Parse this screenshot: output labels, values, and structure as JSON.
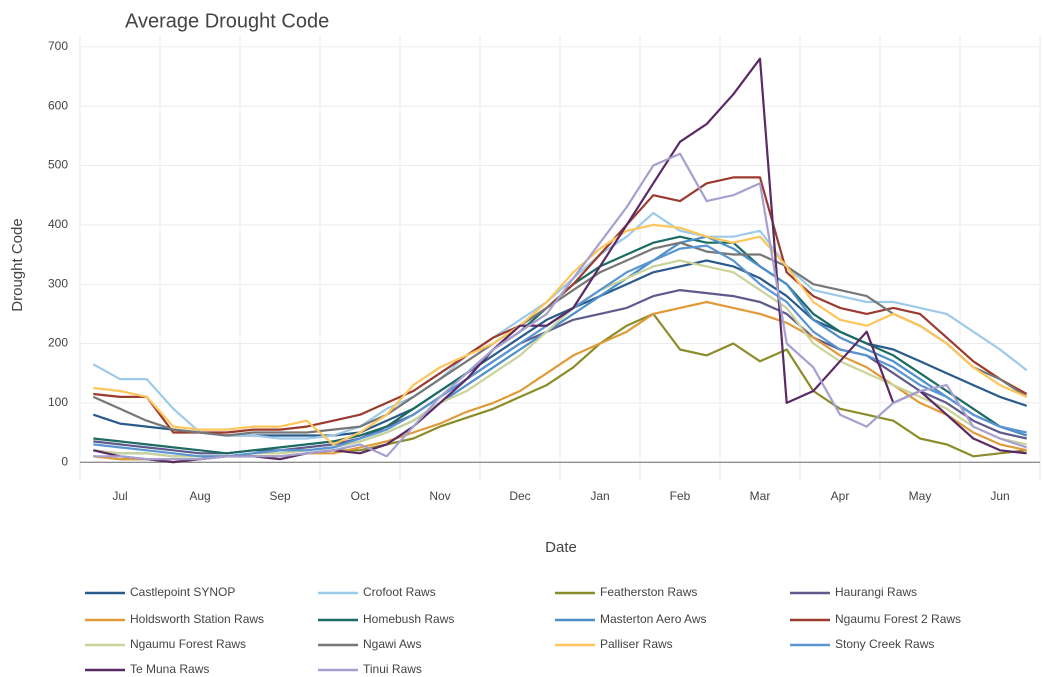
{
  "chart_data": {
    "type": "line",
    "title": "Average Drought Code",
    "x_label": "Date",
    "y_label": "Drought Code",
    "categories": [
      null,
      "Jul",
      null,
      null,
      "Aug",
      null,
      null,
      "Sep",
      null,
      null,
      "Oct",
      null,
      null,
      "Nov",
      null,
      null,
      "Dec",
      null,
      null,
      "Jan",
      null,
      null,
      "Feb",
      null,
      null,
      "Mar",
      null,
      null,
      "Apr",
      null,
      null,
      "May",
      null,
      null,
      "Jun",
      null
    ],
    "ylim": [
      -30,
      720
    ],
    "yticks": [
      0,
      100,
      200,
      300,
      400,
      500,
      600,
      700
    ],
    "grid": true,
    "series": [
      {
        "name": "Castlepoint SYNOP",
        "color": "#2a5b8c",
        "values": [
          80,
          65,
          60,
          55,
          50,
          45,
          45,
          45,
          45,
          45,
          50,
          70,
          90,
          120,
          150,
          180,
          210,
          240,
          260,
          280,
          300,
          320,
          330,
          340,
          330,
          310,
          280,
          240,
          220,
          200,
          190,
          170,
          150,
          130,
          110,
          95
        ]
      },
      {
        "name": "Crofoot Raws",
        "color": "#9ecae9",
        "values": [
          165,
          140,
          140,
          90,
          50,
          45,
          45,
          40,
          40,
          45,
          60,
          90,
          110,
          140,
          180,
          210,
          240,
          270,
          310,
          350,
          380,
          420,
          390,
          380,
          380,
          390,
          330,
          290,
          280,
          270,
          270,
          260,
          250,
          220,
          190,
          155
        ]
      },
      {
        "name": "Featherston Raws",
        "color": "#8c8c2a",
        "values": [
          10,
          5,
          5,
          0,
          5,
          10,
          10,
          10,
          15,
          20,
          20,
          30,
          40,
          60,
          75,
          90,
          110,
          130,
          160,
          200,
          230,
          250,
          190,
          180,
          200,
          170,
          190,
          120,
          90,
          80,
          70,
          40,
          30,
          10,
          15,
          20
        ]
      },
      {
        "name": "Haurangi Raws",
        "color": "#5e5a8c",
        "values": [
          35,
          30,
          25,
          20,
          15,
          15,
          20,
          20,
          25,
          30,
          40,
          60,
          80,
          110,
          140,
          170,
          200,
          220,
          240,
          250,
          260,
          280,
          290,
          285,
          280,
          270,
          250,
          210,
          190,
          180,
          150,
          120,
          100,
          70,
          50,
          40
        ]
      },
      {
        "name": "Holdsworth Station Raws",
        "color": "#e09a3a",
        "values": [
          10,
          5,
          5,
          5,
          5,
          10,
          10,
          10,
          15,
          15,
          25,
          35,
          50,
          65,
          85,
          100,
          120,
          150,
          180,
          200,
          220,
          250,
          260,
          270,
          260,
          250,
          235,
          210,
          180,
          160,
          130,
          100,
          80,
          50,
          30,
          20
        ]
      },
      {
        "name": "Homebush Raws",
        "color": "#1b6b63",
        "values": [
          40,
          35,
          30,
          25,
          20,
          15,
          20,
          25,
          30,
          35,
          45,
          60,
          90,
          120,
          150,
          190,
          220,
          260,
          300,
          330,
          350,
          370,
          380,
          370,
          370,
          330,
          300,
          250,
          220,
          200,
          180,
          150,
          120,
          90,
          60,
          45
        ]
      },
      {
        "name": "Masterton Aero Aws",
        "color": "#4e8fca",
        "values": [
          20,
          15,
          15,
          10,
          10,
          10,
          15,
          20,
          20,
          25,
          35,
          50,
          70,
          100,
          130,
          160,
          190,
          220,
          250,
          280,
          310,
          340,
          370,
          380,
          360,
          330,
          300,
          240,
          210,
          190,
          170,
          140,
          110,
          80,
          60,
          45
        ]
      },
      {
        "name": "Ngaumu Forest 2 Raws",
        "color": "#9b3a2e",
        "values": [
          115,
          110,
          110,
          50,
          50,
          50,
          55,
          55,
          60,
          70,
          80,
          100,
          120,
          150,
          180,
          210,
          230,
          260,
          300,
          350,
          400,
          450,
          440,
          470,
          480,
          480,
          320,
          280,
          260,
          250,
          260,
          250,
          210,
          170,
          140,
          115
        ]
      },
      {
        "name": "Ngaumu Forest Raws",
        "color": "#c9d39a",
        "values": [
          20,
          15,
          15,
          10,
          10,
          10,
          15,
          15,
          20,
          25,
          35,
          50,
          70,
          100,
          120,
          150,
          180,
          220,
          260,
          290,
          310,
          330,
          340,
          330,
          320,
          290,
          260,
          200,
          170,
          150,
          130,
          110,
          90,
          60,
          40,
          30
        ]
      },
      {
        "name": "Ngawi Aws",
        "color": "#777777",
        "values": [
          110,
          90,
          70,
          55,
          50,
          45,
          50,
          50,
          50,
          55,
          60,
          80,
          110,
          140,
          170,
          200,
          230,
          260,
          290,
          320,
          340,
          360,
          370,
          355,
          350,
          350,
          330,
          300,
          290,
          280,
          250,
          230,
          200,
          160,
          140,
          110
        ]
      },
      {
        "name": "Palliser Raws",
        "color": "#fdc55a",
        "values": [
          125,
          120,
          110,
          60,
          55,
          55,
          60,
          60,
          70,
          30,
          50,
          80,
          130,
          160,
          180,
          200,
          230,
          270,
          320,
          360,
          390,
          400,
          395,
          380,
          370,
          380,
          330,
          270,
          240,
          230,
          250,
          230,
          200,
          160,
          130,
          110
        ]
      },
      {
        "name": "Stony Creek Raws",
        "color": "#5a95d1",
        "values": [
          30,
          25,
          20,
          15,
          10,
          10,
          15,
          20,
          20,
          25,
          40,
          55,
          80,
          110,
          140,
          170,
          200,
          230,
          260,
          290,
          320,
          340,
          360,
          365,
          340,
          300,
          270,
          220,
          190,
          180,
          160,
          130,
          110,
          80,
          60,
          50
        ]
      },
      {
        "name": "Te Muna Raws",
        "color": "#5a2a64",
        "values": [
          20,
          10,
          5,
          0,
          5,
          10,
          10,
          5,
          15,
          20,
          15,
          30,
          60,
          100,
          140,
          190,
          230,
          230,
          260,
          330,
          400,
          470,
          540,
          570,
          620,
          680,
          100,
          120,
          170,
          220,
          100,
          120,
          80,
          40,
          20,
          15
        ]
      },
      {
        "name": "Tinui Raws",
        "color": "#a6a0d0",
        "values": [
          10,
          10,
          5,
          5,
          5,
          10,
          10,
          10,
          15,
          20,
          30,
          10,
          60,
          110,
          150,
          190,
          220,
          250,
          310,
          370,
          430,
          500,
          520,
          440,
          450,
          470,
          200,
          160,
          80,
          60,
          100,
          120,
          130,
          60,
          40,
          25
        ]
      }
    ]
  }
}
